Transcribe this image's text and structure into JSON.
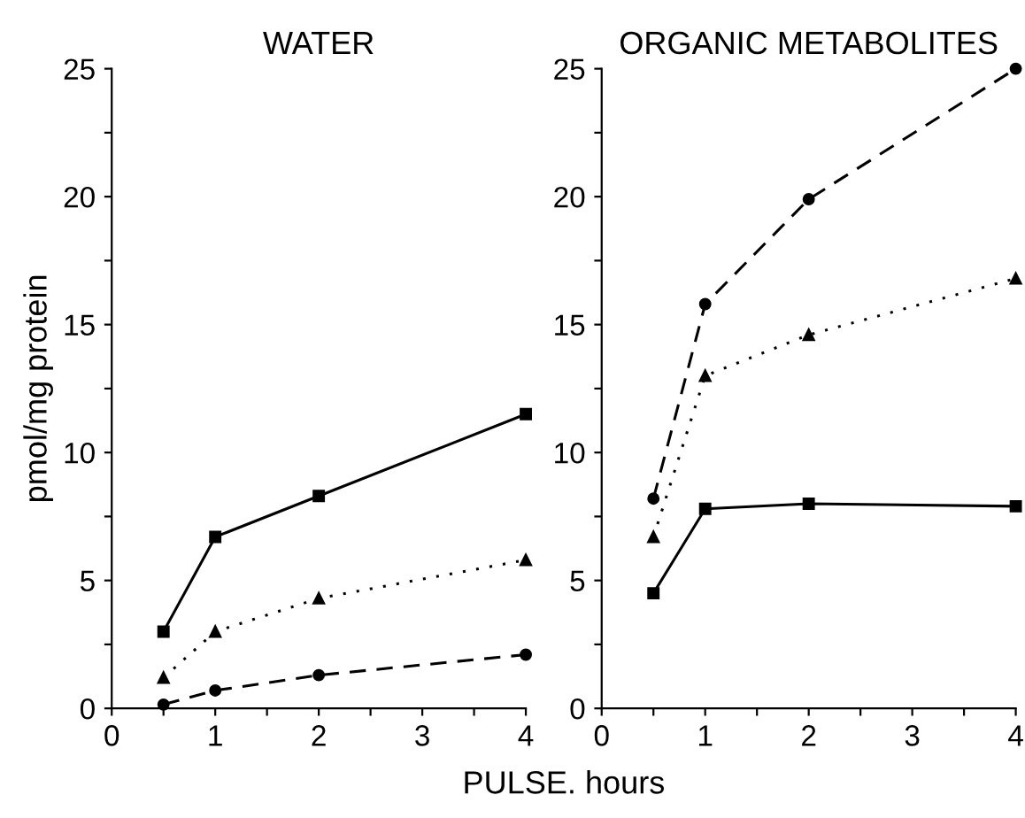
{
  "chart_data": [
    {
      "type": "line",
      "title": "WATER",
      "xlabel": "PULSE. hours",
      "ylabel": "pmol/mg protein",
      "x": [
        0.5,
        1,
        2,
        4
      ],
      "series": [
        {
          "color": "#000000",
          "marker": "square",
          "line_style": "solid",
          "values": [
            3.0,
            6.7,
            8.3,
            11.5
          ]
        },
        {
          "color": "#000000",
          "marker": "triangle",
          "line_style": "dotted",
          "values": [
            1.2,
            3.0,
            4.3,
            5.8
          ]
        },
        {
          "color": "#000000",
          "marker": "circle",
          "line_style": "dashed",
          "values": [
            0.15,
            0.7,
            1.3,
            2.1
          ]
        }
      ],
      "xlim": [
        0,
        4
      ],
      "ylim": [
        0,
        25
      ],
      "xticks": [
        0,
        {
          "value": 0.5,
          "label": null
        },
        1,
        {
          "value": 1.5,
          "label": null
        },
        2,
        {
          "value": 2.5,
          "label": null
        },
        3,
        {
          "value": 3.5,
          "label": null
        },
        4
      ],
      "yticks": [
        0,
        {
          "value": 2.5,
          "label": null
        },
        5,
        {
          "value": 7.5,
          "label": null
        },
        10,
        {
          "value": 12.5,
          "label": null
        },
        15,
        {
          "value": 17.5,
          "label": null
        },
        20,
        {
          "value": 22.5,
          "label": null
        },
        25
      ],
      "grid": false,
      "legend": false
    },
    {
      "type": "line",
      "title": "ORGANIC METABOLITES",
      "x": [
        0.5,
        1,
        2,
        4
      ],
      "series": [
        {
          "color": "#000000",
          "marker": "square",
          "line_style": "solid",
          "values": [
            4.5,
            7.8,
            8.0,
            7.9
          ]
        },
        {
          "color": "#000000",
          "marker": "triangle",
          "line_style": "dotted",
          "values": [
            6.7,
            13.0,
            14.6,
            16.8
          ]
        },
        {
          "color": "#000000",
          "marker": "circle",
          "line_style": "dashed",
          "values": [
            8.2,
            15.8,
            19.9,
            25.0
          ]
        }
      ],
      "xlim": [
        0,
        4
      ],
      "ylim": [
        0,
        25
      ],
      "xticks": [
        0,
        {
          "value": 0.5,
          "label": null
        },
        1,
        {
          "value": 1.5,
          "label": null
        },
        2,
        {
          "value": 2.5,
          "label": null
        },
        3,
        {
          "value": 3.5,
          "label": null
        },
        4
      ],
      "yticks": [
        0,
        {
          "value": 2.5,
          "label": null
        },
        5,
        {
          "value": 7.5,
          "label": null
        },
        10,
        {
          "value": 12.5,
          "label": null
        },
        15,
        {
          "value": 17.5,
          "label": null
        },
        20,
        {
          "value": 22.5,
          "label": null
        },
        25
      ],
      "grid": false,
      "legend": false
    }
  ]
}
